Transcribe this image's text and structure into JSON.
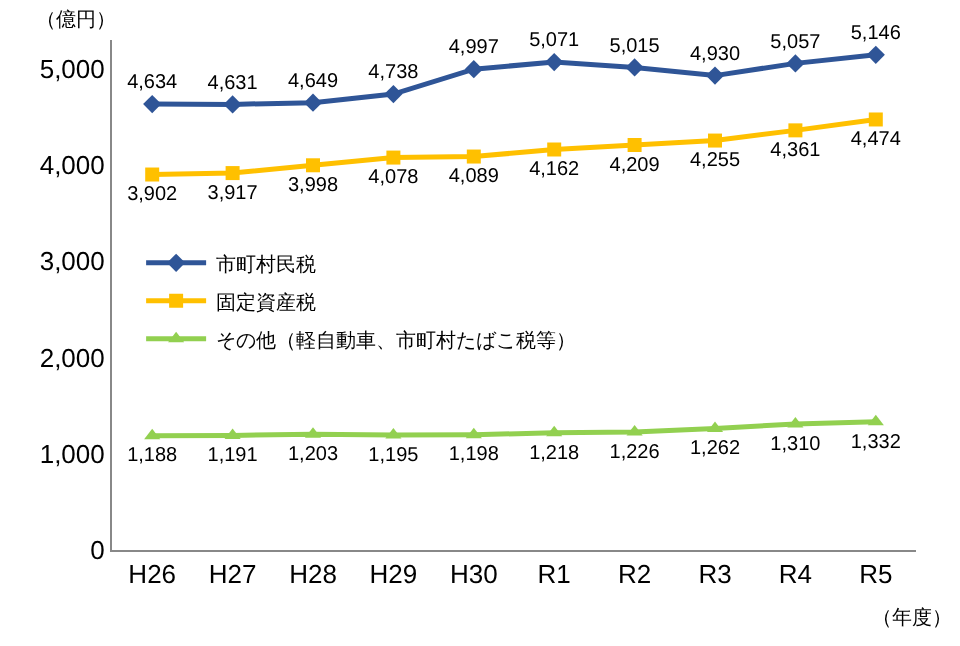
{
  "chart_data": {
    "type": "line",
    "ylabel": "（億円）",
    "xlabel": "（年度）",
    "categories": [
      "H26",
      "H27",
      "H28",
      "H29",
      "H30",
      "R1",
      "R2",
      "R3",
      "R4",
      "R5"
    ],
    "ylim": [
      0,
      5300
    ],
    "yticks": [
      0,
      {
        "value": 1000,
        "label": "1,000"
      },
      {
        "value": 2000,
        "label": "2,000"
      },
      {
        "value": 3000,
        "label": "3,000"
      },
      {
        "value": 4000,
        "label": "4,000"
      },
      {
        "value": 5000,
        "label": "5,000"
      }
    ],
    "grid": false,
    "legend": "left",
    "line_style": "solid",
    "series": [
      {
        "name": "市町村民税",
        "color": "#2f5597",
        "marker": "diamond",
        "values": [
          4634,
          4631,
          4649,
          4738,
          4997,
          5071,
          5015,
          4930,
          5057,
          5146
        ],
        "value_labels": [
          "4,634",
          "4,631",
          "4,649",
          "4,738",
          "4,997",
          "5,071",
          "5,015",
          "4,930",
          "5,057",
          "5,146"
        ]
      },
      {
        "name": "固定資産税",
        "color": "#ffc000",
        "marker": "square",
        "values": [
          3902,
          3917,
          3998,
          4078,
          4089,
          4162,
          4209,
          4255,
          4361,
          4474
        ],
        "value_labels": [
          "3,902",
          "3,917",
          "3,998",
          "4,078",
          "4,089",
          "4,162",
          "4,209",
          "4,255",
          "4,361",
          "4,474"
        ]
      },
      {
        "name": "その他（軽自動車、市町村たばこ税等）",
        "color": "#92d050",
        "marker": "triangle",
        "values": [
          1188,
          1191,
          1203,
          1195,
          1198,
          1218,
          1226,
          1262,
          1310,
          1332
        ],
        "value_labels": [
          "1,188",
          "1,191",
          "1,203",
          "1,195",
          "1,198",
          "1,218",
          "1,226",
          "1,262",
          "1,310",
          "1,332"
        ]
      }
    ]
  }
}
